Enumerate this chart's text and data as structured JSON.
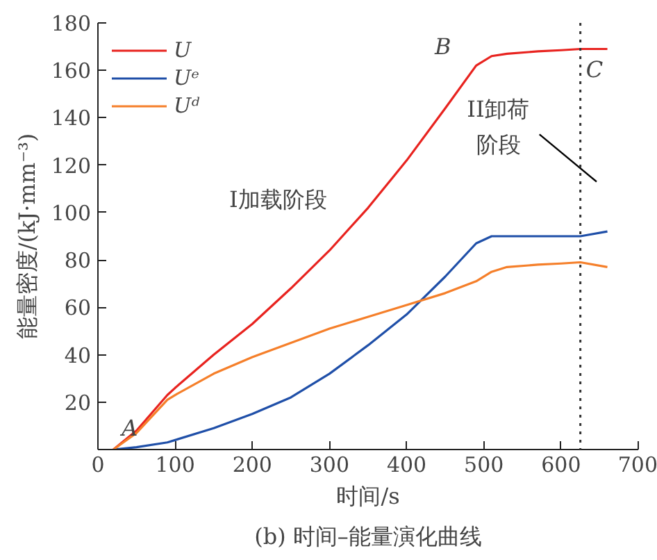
{
  "chart_data": {
    "type": "line",
    "xlabel": "时间/s",
    "ylabel": "能量密度/(kJ·mm⁻³)",
    "x": [
      20,
      50,
      90,
      100,
      150,
      200,
      250,
      300,
      350,
      400,
      450,
      490,
      510,
      530,
      570,
      600,
      625,
      660
    ],
    "series": [
      {
        "name": "U",
        "color": "#e8231f",
        "values": [
          0,
          8,
          23,
          26,
          40,
          53,
          68,
          84,
          102,
          122,
          144,
          162,
          166,
          167,
          168,
          168.5,
          169,
          169
        ]
      },
      {
        "name": "Uᵉ",
        "color": "#1f4fa8",
        "values": [
          0,
          1,
          3,
          4,
          9,
          15,
          22,
          32,
          44,
          57,
          73,
          87,
          90,
          90,
          90,
          90,
          90,
          92
        ]
      },
      {
        "name": "Uᵈ",
        "color": "#f57f2a",
        "values": [
          0,
          7,
          21,
          23,
          32,
          39,
          45,
          51,
          56,
          61,
          66,
          71,
          75,
          77,
          78,
          78.5,
          79,
          77
        ]
      }
    ],
    "xlim": [
      0,
      700
    ],
    "xticks": [
      0,
      100,
      200,
      300,
      400,
      500,
      600,
      700
    ],
    "ylim": [
      0,
      180
    ],
    "yticks": [
      {
        "value": 0,
        "label": null
      },
      20,
      40,
      60,
      80,
      100,
      120,
      140,
      160,
      180
    ],
    "ref_lines": [
      {
        "axis": "x",
        "value": 625,
        "color": "#333333",
        "line_style": "dotted"
      }
    ],
    "annotations": [
      {
        "text": "A",
        "x": 20,
        "y": 0
      },
      {
        "text": "B",
        "x": 490,
        "y": 162
      },
      {
        "text": "C",
        "x": 625,
        "y": 169
      },
      "I加载阶段",
      "II卸荷",
      "阶段",
      "(b) 时间–能量演化曲线"
    ],
    "legend": "top left",
    "grid": false,
    "marker": "none",
    "line_style": "solid"
  }
}
